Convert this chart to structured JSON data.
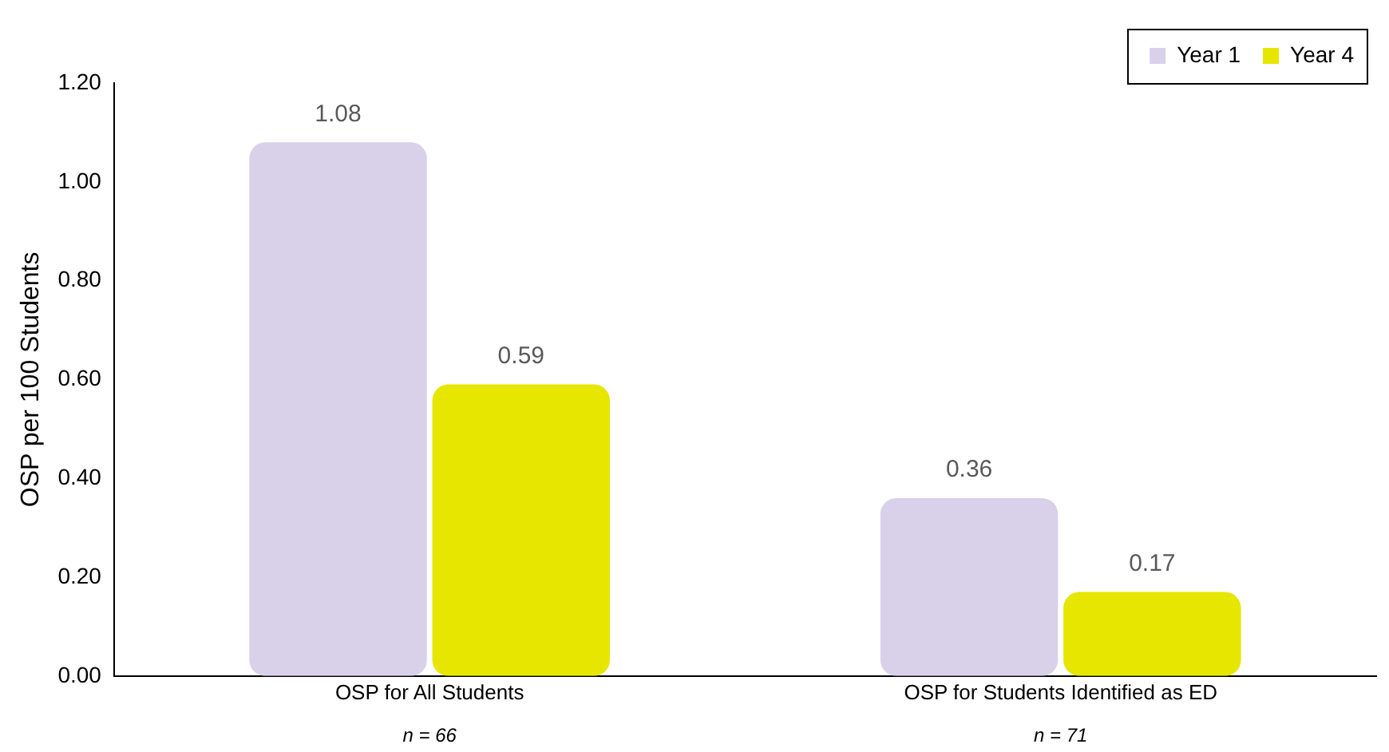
{
  "chart_data": {
    "type": "bar",
    "ylabel": "OSP per 100 Students",
    "categories": [
      "OSP for All Students",
      "OSP for Students Identified as ED"
    ],
    "series": [
      {
        "name": "Year 1",
        "color": "#d9d0ea",
        "values": [
          1.08,
          0.36
        ]
      },
      {
        "name": "Year 4",
        "color": "#e6e600",
        "values": [
          0.59,
          0.17
        ]
      }
    ],
    "ylim": [
      0,
      1.2
    ],
    "yticks": [
      {
        "value": 0,
        "label": "0.00"
      },
      {
        "value": 0.2,
        "label": "0.20"
      },
      {
        "value": 0.4,
        "label": "0.40"
      },
      {
        "value": 0.6,
        "label": "0.60"
      },
      {
        "value": 0.8,
        "label": "0.80"
      },
      {
        "value": 1,
        "label": "1.00"
      },
      {
        "value": 1.2,
        "label": "1.20"
      }
    ],
    "data_labels": true,
    "grid": false,
    "legend": "top right",
    "annotations": [
      "n = 66",
      "n = 71"
    ]
  }
}
